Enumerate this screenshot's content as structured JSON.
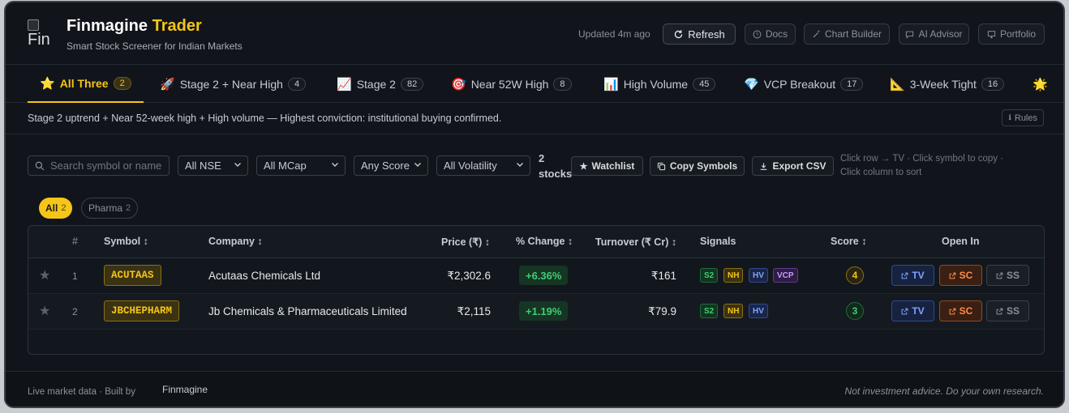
{
  "app": {
    "title_main": "Finmagine",
    "title_accent": "Trader",
    "subtitle": "Smart Stock Screener for Indian Markets",
    "logo_alt": "Fin",
    "updated": "Updated 4m ago"
  },
  "header_buttons": {
    "refresh": "Refresh",
    "docs": "Docs",
    "chart_builder": "Chart Builder",
    "ai_advisor": "AI Advisor",
    "portfolio": "Portfolio"
  },
  "tabs": [
    {
      "emoji": "⭐",
      "label": "All Three",
      "count": "2"
    },
    {
      "emoji": "🚀",
      "label": "Stage 2 + Near High",
      "count": "4"
    },
    {
      "emoji": "📈",
      "label": "Stage 2",
      "count": "82"
    },
    {
      "emoji": "🎯",
      "label": "Near 52W High",
      "count": "8"
    },
    {
      "emoji": "📊",
      "label": "High Volume",
      "count": "45"
    },
    {
      "emoji": "💎",
      "label": "VCP Breakout",
      "count": "17"
    },
    {
      "emoji": "📐",
      "label": "3-Week Tight",
      "count": "16"
    },
    {
      "emoji": "🌟",
      "label": "",
      "count": ""
    }
  ],
  "description": "Stage 2 uptrend + Near 52-week high + High volume — Highest conviction: institutional buying confirmed.",
  "rules_label": "Rules",
  "filters": {
    "search_placeholder": "Search symbol or name",
    "exchange": "All NSE",
    "mcap": "All MCap",
    "score": "Any Score",
    "volatility": "All Volatility",
    "stocks_count": "2",
    "stocks_word": "stocks",
    "watchlist": "Watchlist",
    "copy_symbols": "Copy Symbols",
    "export_csv": "Export CSV",
    "hint_line1": "Click row → TV  ·  Click symbol to copy  ·",
    "hint_line2": "Click column to sort"
  },
  "sectors": [
    {
      "label": "All",
      "count": "2"
    },
    {
      "label": "Pharma",
      "count": "2"
    }
  ],
  "table": {
    "headers": {
      "rank": "#",
      "symbol": "Symbol ↕",
      "company": "Company ↕",
      "price": "Price (₹) ↕",
      "change": "% Change ↕",
      "turnover": "Turnover (₹ Cr) ↕",
      "signals": "Signals",
      "score": "Score ↕",
      "open_in": "Open In"
    },
    "rows": [
      {
        "rank": "1",
        "symbol": "ACUTAAS",
        "company": "Acutaas Chemicals Ltd",
        "price": "₹2,302.6",
        "change": "+6.36%",
        "turnover": "₹161",
        "signals": [
          "S2",
          "NH",
          "HV",
          "VCP"
        ],
        "score": "4"
      },
      {
        "rank": "2",
        "symbol": "JBCHEPHARM",
        "company": "Jb Chemicals & Pharmaceuticals Limited",
        "price": "₹2,115",
        "change": "+1.19%",
        "turnover": "₹79.9",
        "signals": [
          "S2",
          "NH",
          "HV"
        ],
        "score": "3"
      }
    ],
    "open_in": {
      "tv": "TV",
      "sc": "SC",
      "ss": "SS"
    }
  },
  "footer": {
    "left": "Live market data · Built by",
    "brand": "Finmagine",
    "right": "Not investment advice. Do your own research."
  },
  "colors": {
    "accent": "#f5c518",
    "background": "#11151b",
    "positive": "#3ecf72",
    "tv_blue": "#7ea4ff",
    "sc_orange": "#ff8c4a",
    "vcp_purple": "#c79bff"
  },
  "icons": {
    "refresh": "refresh-icon",
    "docs": "help-circle-icon",
    "chart_builder": "magic-wand-icon",
    "ai_advisor": "chat-icon",
    "portfolio": "monitor-icon",
    "search": "search-icon",
    "watchlist": "star-icon",
    "copy": "copy-icon",
    "export": "download-icon",
    "open_link": "external-link-icon"
  }
}
